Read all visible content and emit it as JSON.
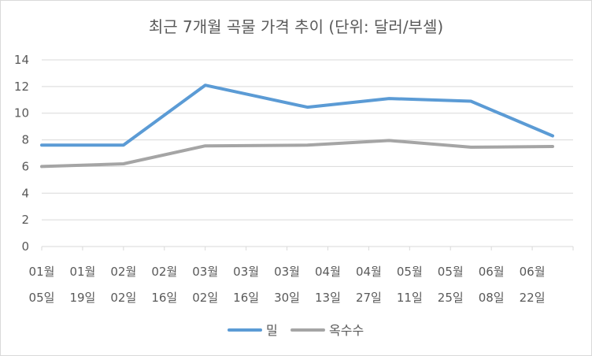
{
  "chart_data": {
    "type": "line",
    "title": "최근 7개월 곡물 가격 추이 (단위: 달러/부셀)",
    "categories": [
      [
        "01월",
        "05일"
      ],
      [
        "01월",
        "19일"
      ],
      [
        "02월",
        "02일"
      ],
      [
        "02월",
        "16일"
      ],
      [
        "03월",
        "02일"
      ],
      [
        "03월",
        "16일"
      ],
      [
        "03월",
        "30일"
      ],
      [
        "04월",
        "13일"
      ],
      [
        "04월",
        "27일"
      ],
      [
        "05월",
        "11일"
      ],
      [
        "05월",
        "25일"
      ],
      [
        "06월",
        "08일"
      ],
      [
        "06월",
        "22일"
      ]
    ],
    "series": [
      {
        "name": "밀",
        "color": "#5b9bd5",
        "points": [
          [
            0,
            7.6
          ],
          [
            2,
            7.6
          ],
          [
            4,
            12.1
          ],
          [
            6.5,
            10.45
          ],
          [
            8.5,
            11.1
          ],
          [
            10.5,
            10.9
          ],
          [
            12.5,
            8.3
          ]
        ]
      },
      {
        "name": "옥수수",
        "color": "#a5a5a5",
        "points": [
          [
            0,
            6.0
          ],
          [
            2,
            6.2
          ],
          [
            4,
            7.55
          ],
          [
            6.5,
            7.6
          ],
          [
            8.5,
            7.95
          ],
          [
            10.5,
            7.45
          ],
          [
            12.5,
            7.5
          ]
        ]
      }
    ],
    "ylim": [
      0,
      14
    ],
    "yticks": [
      "0",
      "2",
      "4",
      "6",
      "8",
      "10",
      "12",
      "14"
    ],
    "grid": true,
    "legend_position": "bottom"
  }
}
